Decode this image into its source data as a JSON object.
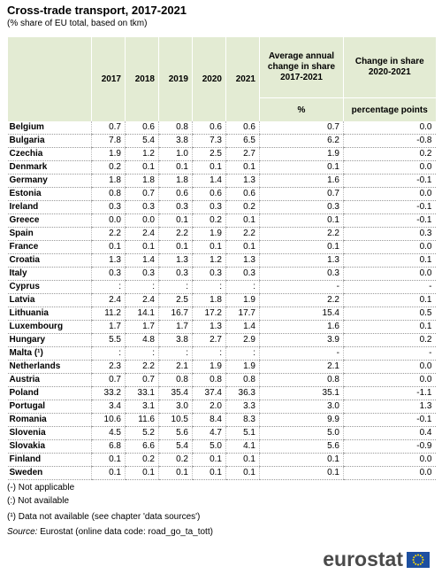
{
  "header": {
    "title": "Cross-trade transport, 2017-2021",
    "subtitle": "(% share of EU total, based on tkm)"
  },
  "table": {
    "columns": [
      "2017",
      "2018",
      "2019",
      "2020",
      "2021",
      "Average annual change in share 2017-2021",
      "Change in share 2020-2021"
    ],
    "units": [
      "%",
      "percentage points"
    ],
    "rows": [
      [
        "Belgium",
        "0.7",
        "0.6",
        "0.8",
        "0.6",
        "0.6",
        "0.7",
        "0.0"
      ],
      [
        "Bulgaria",
        "7.8",
        "5.4",
        "3.8",
        "7.3",
        "6.5",
        "6.2",
        "-0.8"
      ],
      [
        "Czechia",
        "1.9",
        "1.2",
        "1.0",
        "2.5",
        "2.7",
        "1.9",
        "0.2"
      ],
      [
        "Denmark",
        "0.2",
        "0.1",
        "0.1",
        "0.1",
        "0.1",
        "0.1",
        "0.0"
      ],
      [
        "Germany",
        "1.8",
        "1.8",
        "1.8",
        "1.4",
        "1.3",
        "1.6",
        "-0.1"
      ],
      [
        "Estonia",
        "0.8",
        "0.7",
        "0.6",
        "0.6",
        "0.6",
        "0.7",
        "0.0"
      ],
      [
        "Ireland",
        "0.3",
        "0.3",
        "0.3",
        "0.3",
        "0.2",
        "0.3",
        "-0.1"
      ],
      [
        "Greece",
        "0.0",
        "0.0",
        "0.1",
        "0.2",
        "0.1",
        "0.1",
        "-0.1"
      ],
      [
        "Spain",
        "2.2",
        "2.4",
        "2.2",
        "1.9",
        "2.2",
        "2.2",
        "0.3"
      ],
      [
        "France",
        "0.1",
        "0.1",
        "0.1",
        "0.1",
        "0.1",
        "0.1",
        "0.0"
      ],
      [
        "Croatia",
        "1.3",
        "1.4",
        "1.3",
        "1.2",
        "1.3",
        "1.3",
        "0.1"
      ],
      [
        "Italy",
        "0.3",
        "0.3",
        "0.3",
        "0.3",
        "0.3",
        "0.3",
        "0.0"
      ],
      [
        "Cyprus",
        ":",
        ":",
        ":",
        ":",
        ":",
        "-",
        "-"
      ],
      [
        "Latvia",
        "2.4",
        "2.4",
        "2.5",
        "1.8",
        "1.9",
        "2.2",
        "0.1"
      ],
      [
        "Lithuania",
        "11.2",
        "14.1",
        "16.7",
        "17.2",
        "17.7",
        "15.4",
        "0.5"
      ],
      [
        "Luxembourg",
        "1.7",
        "1.7",
        "1.7",
        "1.3",
        "1.4",
        "1.6",
        "0.1"
      ],
      [
        "Hungary",
        "5.5",
        "4.8",
        "3.8",
        "2.7",
        "2.9",
        "3.9",
        "0.2"
      ],
      [
        "Malta (¹)",
        ":",
        ":",
        ":",
        ":",
        ":",
        "-",
        "-"
      ],
      [
        "Netherlands",
        "2.3",
        "2.2",
        "2.1",
        "1.9",
        "1.9",
        "2.1",
        "0.0"
      ],
      [
        "Austria",
        "0.7",
        "0.7",
        "0.8",
        "0.8",
        "0.8",
        "0.8",
        "0.0"
      ],
      [
        "Poland",
        "33.2",
        "33.1",
        "35.4",
        "37.4",
        "36.3",
        "35.1",
        "-1.1"
      ],
      [
        "Portugal",
        "3.4",
        "3.1",
        "3.0",
        "2.0",
        "3.3",
        "3.0",
        "1.3"
      ],
      [
        "Romania",
        "10.6",
        "11.6",
        "10.5",
        "8.4",
        "8.3",
        "9.9",
        "-0.1"
      ],
      [
        "Slovenia",
        "4.5",
        "5.2",
        "5.6",
        "4.7",
        "5.1",
        "5.0",
        "0.4"
      ],
      [
        "Slovakia",
        "6.8",
        "6.6",
        "5.4",
        "5.0",
        "4.1",
        "5.6",
        "-0.9"
      ],
      [
        "Finland",
        "0.1",
        "0.2",
        "0.2",
        "0.1",
        "0.1",
        "0.1",
        "0.0"
      ],
      [
        "Sweden",
        "0.1",
        "0.1",
        "0.1",
        "0.1",
        "0.1",
        "0.1",
        "0.0"
      ]
    ]
  },
  "notes": [
    "(-) Not applicable",
    "(:) Not available",
    "(¹) Data not available (see chapter 'data sources')"
  ],
  "source": {
    "label": "Source:",
    "text": "Eurostat (online data code: road_go_ta_tott)"
  },
  "logo": "eurostat"
}
